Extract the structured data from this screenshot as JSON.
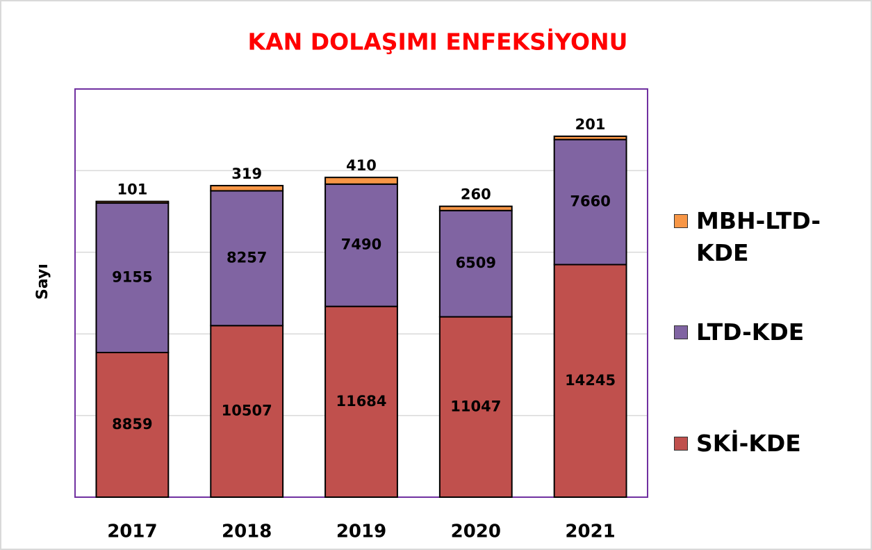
{
  "chart_data": {
    "type": "stacked_bar",
    "title": "KAN DOLAŞIMI ENFEKSİYONU",
    "y_label": "Sayı",
    "categories": [
      "2017",
      "2018",
      "2019",
      "2020",
      "2021"
    ],
    "series": [
      {
        "name": "SKİ-KDE",
        "color": "#c0504d",
        "values": [
          8859,
          10507,
          11684,
          11047,
          14245
        ]
      },
      {
        "name": "LTD-KDE",
        "color": "#8064a2",
        "values": [
          9155,
          8257,
          7490,
          6509,
          7660
        ]
      },
      {
        "name": "MBH-LTD-KDE",
        "color": "#f79646",
        "values": [
          101,
          319,
          410,
          260,
          201
        ]
      }
    ],
    "ylim": [
      0,
      25000
    ],
    "yticks": [
      0,
      5000,
      10000,
      15000,
      20000,
      25000
    ],
    "grid": true,
    "legend": "right"
  }
}
